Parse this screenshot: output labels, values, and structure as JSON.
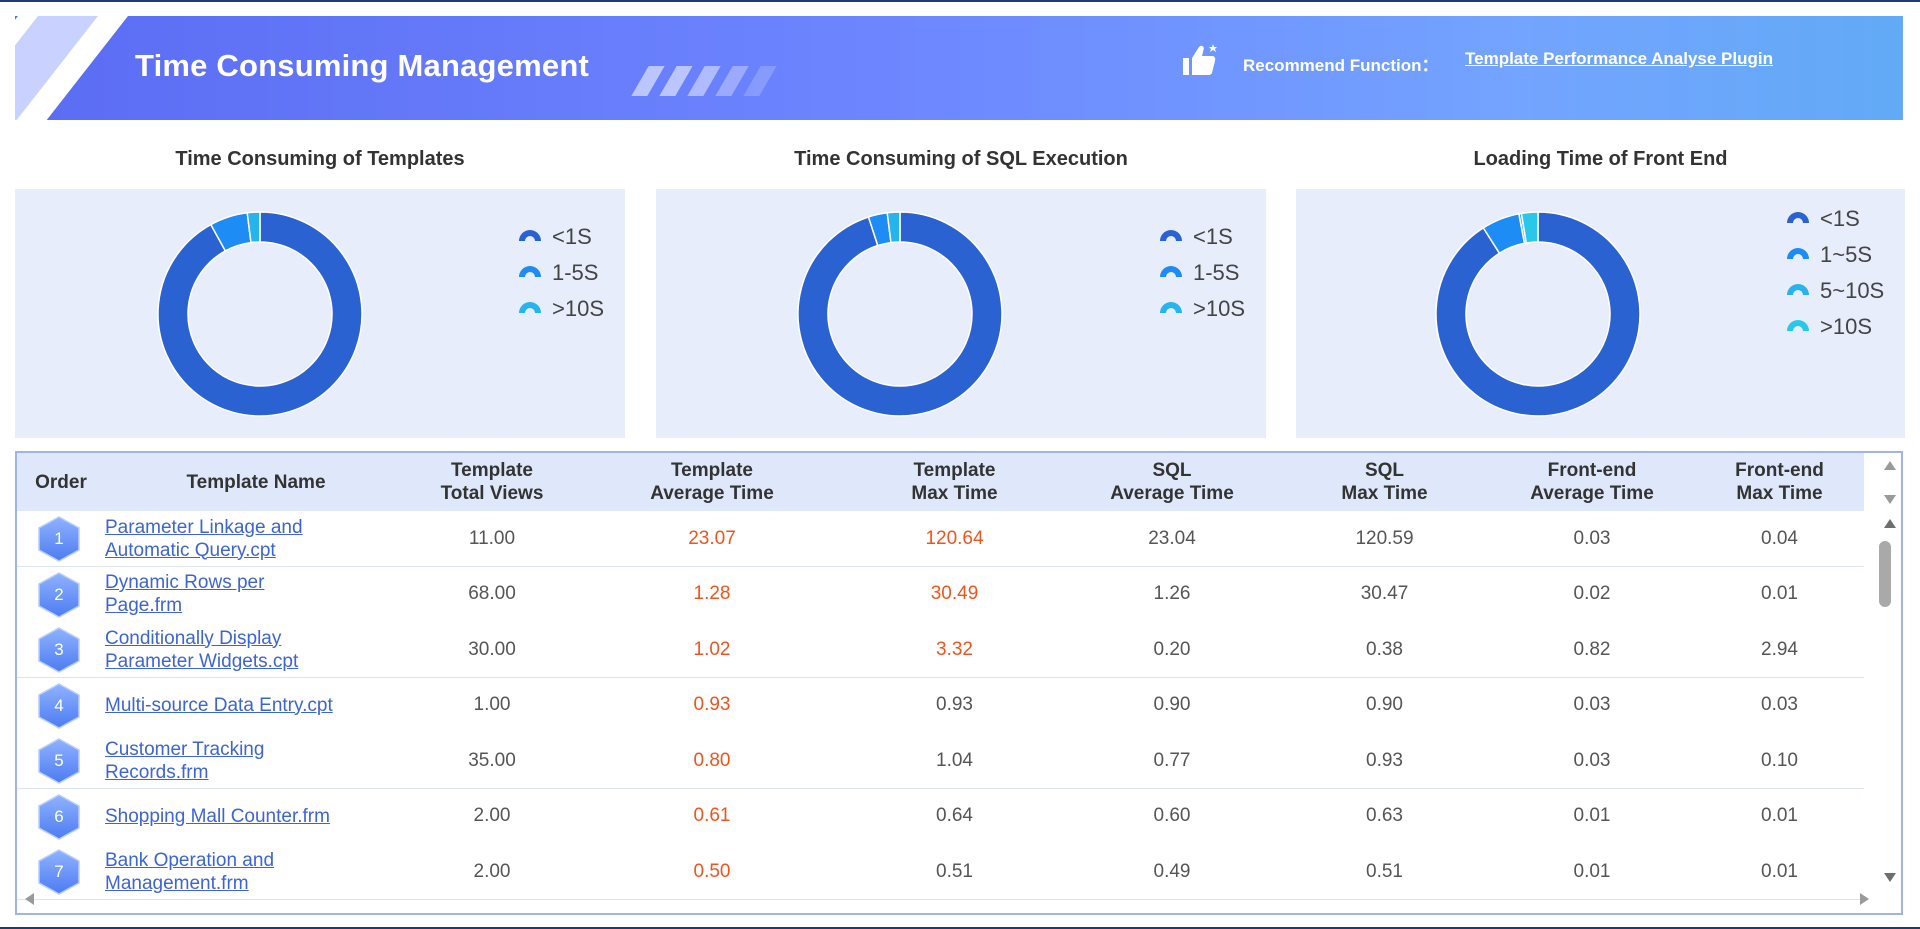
{
  "header": {
    "title": "Time Consuming Management",
    "recommend_label": "Recommend Function：",
    "recommend_link": "Template Performance Analyse Plugin"
  },
  "colors": {
    "dark_blue": "#2a62d2",
    "mid_blue": "#1e8cf5",
    "light_blue": "#26b3ee",
    "cyan": "#29c7ea",
    "red_value": "#f2531d",
    "link": "#3d64d6"
  },
  "icons": {
    "thumb": "thumbs-up-icon",
    "scroll_up": "triangle-up-icon",
    "scroll_down": "triangle-down-icon",
    "scroll_left": "triangle-left-icon",
    "scroll_right": "triangle-right-icon"
  },
  "chart_data": [
    {
      "type": "pie",
      "title": "Time Consuming of Templates",
      "donut": true,
      "labels": [
        "<1S",
        "1-5S",
        ">10S"
      ],
      "values": [
        92,
        6,
        2
      ],
      "colors": [
        "#2a62d2",
        "#1e8cf5",
        "#26b3ee"
      ],
      "legend": "right"
    },
    {
      "type": "pie",
      "title": "Time Consuming of SQL Execution",
      "donut": true,
      "labels": [
        "<1S",
        "1-5S",
        ">10S"
      ],
      "values": [
        95,
        3,
        2
      ],
      "colors": [
        "#2a62d2",
        "#1e8cf5",
        "#26b3ee"
      ],
      "legend": "right"
    },
    {
      "type": "pie",
      "title": "Loading Time of Front End",
      "donut": true,
      "labels": [
        "<1S",
        "1~5S",
        "5~10S",
        ">10S"
      ],
      "values": [
        91,
        6,
        0.4,
        2.6
      ],
      "colors": [
        "#2a62d2",
        "#1e8cf5",
        "#26b3ee",
        "#29c7ea"
      ],
      "legend": "right"
    }
  ],
  "table": {
    "headers": [
      "Order",
      "Template Name",
      "Template\nTotal Views",
      "Template\nAverage Time",
      "Template\nMax Time",
      "SQL\nAverage Time",
      "SQL\nMax Time",
      "Front-end\nAverage Time",
      "Front-end\nMax Time"
    ],
    "rows": [
      {
        "order": "1",
        "name": "Parameter Linkage and Automatic Query.cpt",
        "views": "11.00",
        "tavg": "23.07",
        "tmax": "120.64",
        "savg": "23.04",
        "smax": "120.59",
        "favg": "0.03",
        "fmax": "0.04"
      },
      {
        "order": "2",
        "name": "Dynamic Rows per Page.frm",
        "views": "68.00",
        "tavg": "1.28",
        "tmax": "30.49",
        "savg": "1.26",
        "smax": "30.47",
        "favg": "0.02",
        "fmax": "0.01"
      },
      {
        "order": "3",
        "name": "Conditionally Display Parameter Widgets.cpt",
        "views": "30.00",
        "tavg": "1.02",
        "tmax": "3.32",
        "savg": "0.20",
        "smax": "0.38",
        "favg": "0.82",
        "fmax": "2.94"
      },
      {
        "order": "4",
        "name": "Multi-source Data Entry.cpt",
        "views": "1.00",
        "tavg": "0.93",
        "tmax": "0.93",
        "savg": "0.90",
        "smax": "0.90",
        "favg": "0.03",
        "fmax": "0.03"
      },
      {
        "order": "5",
        "name": "Customer Tracking Records.frm",
        "views": "35.00",
        "tavg": "0.80",
        "tmax": "1.04",
        "savg": "0.77",
        "smax": "0.93",
        "favg": "0.03",
        "fmax": "0.10"
      },
      {
        "order": "6",
        "name": "Shopping Mall Counter.frm",
        "views": "2.00",
        "tavg": "0.61",
        "tmax": "0.64",
        "savg": "0.60",
        "smax": "0.63",
        "favg": "0.01",
        "fmax": "0.01"
      },
      {
        "order": "7",
        "name": "Bank Operation and Management.frm",
        "views": "2.00",
        "tavg": "0.50",
        "tmax": "0.51",
        "savg": "0.49",
        "smax": "0.51",
        "favg": "0.01",
        "fmax": "0.01"
      }
    ],
    "red_max_rows": 3
  }
}
